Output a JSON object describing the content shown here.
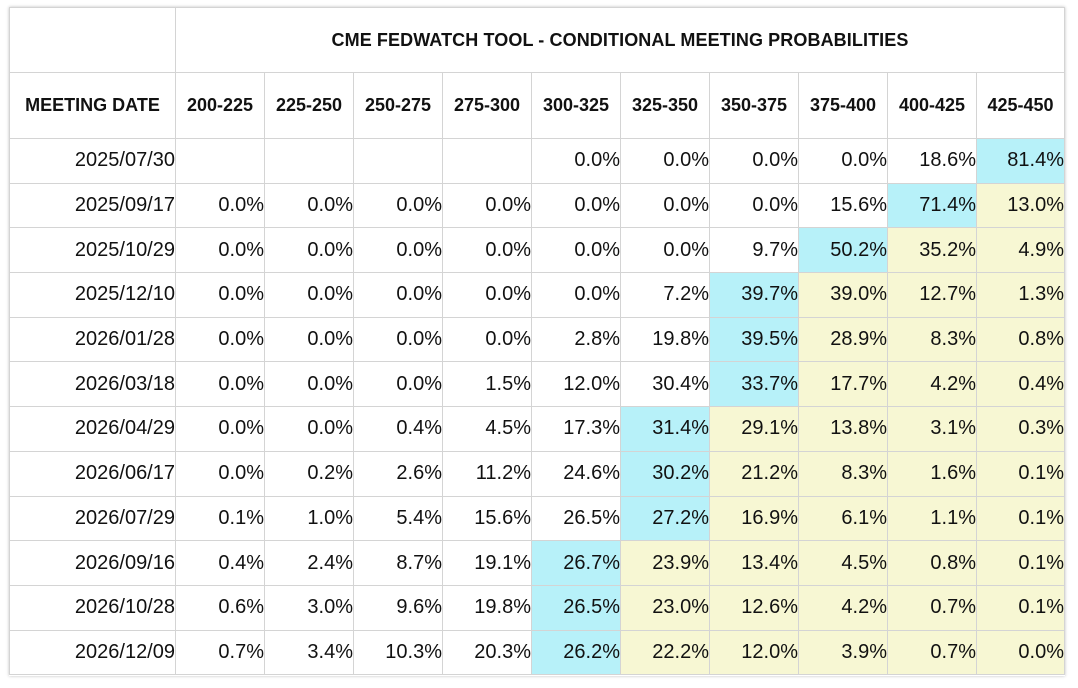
{
  "title": "CME FEDWATCH TOOL - CONDITIONAL MEETING PROBABILITIES",
  "date_header": "MEETING DATE",
  "ranges": [
    "200-225",
    "225-250",
    "250-275",
    "275-300",
    "300-325",
    "325-350",
    "350-375",
    "375-400",
    "400-425",
    "425-450"
  ],
  "colors": {
    "highest": "#b7f1f9",
    "above_highest_range": "#f7f7d3",
    "border": "#d4d4d4"
  },
  "rows": [
    {
      "date": "2025/07/30",
      "values": [
        "",
        "",
        "",
        "",
        "0.0%",
        "0.0%",
        "0.0%",
        "0.0%",
        "18.6%",
        "81.4%"
      ],
      "highlight": [
        0,
        0,
        0,
        0,
        0,
        0,
        0,
        0,
        0,
        1
      ]
    },
    {
      "date": "2025/09/17",
      "values": [
        "0.0%",
        "0.0%",
        "0.0%",
        "0.0%",
        "0.0%",
        "0.0%",
        "0.0%",
        "15.6%",
        "71.4%",
        "13.0%"
      ],
      "highlight": [
        0,
        0,
        0,
        0,
        0,
        0,
        0,
        0,
        1,
        2
      ]
    },
    {
      "date": "2025/10/29",
      "values": [
        "0.0%",
        "0.0%",
        "0.0%",
        "0.0%",
        "0.0%",
        "0.0%",
        "9.7%",
        "50.2%",
        "35.2%",
        "4.9%"
      ],
      "highlight": [
        0,
        0,
        0,
        0,
        0,
        0,
        0,
        1,
        2,
        2
      ]
    },
    {
      "date": "2025/12/10",
      "values": [
        "0.0%",
        "0.0%",
        "0.0%",
        "0.0%",
        "0.0%",
        "7.2%",
        "39.7%",
        "39.0%",
        "12.7%",
        "1.3%"
      ],
      "highlight": [
        0,
        0,
        0,
        0,
        0,
        0,
        1,
        2,
        2,
        2
      ]
    },
    {
      "date": "2026/01/28",
      "values": [
        "0.0%",
        "0.0%",
        "0.0%",
        "0.0%",
        "2.8%",
        "19.8%",
        "39.5%",
        "28.9%",
        "8.3%",
        "0.8%"
      ],
      "highlight": [
        0,
        0,
        0,
        0,
        0,
        0,
        1,
        2,
        2,
        2
      ]
    },
    {
      "date": "2026/03/18",
      "values": [
        "0.0%",
        "0.0%",
        "0.0%",
        "1.5%",
        "12.0%",
        "30.4%",
        "33.7%",
        "17.7%",
        "4.2%",
        "0.4%"
      ],
      "highlight": [
        0,
        0,
        0,
        0,
        0,
        0,
        1,
        2,
        2,
        2
      ]
    },
    {
      "date": "2026/04/29",
      "values": [
        "0.0%",
        "0.0%",
        "0.4%",
        "4.5%",
        "17.3%",
        "31.4%",
        "29.1%",
        "13.8%",
        "3.1%",
        "0.3%"
      ],
      "highlight": [
        0,
        0,
        0,
        0,
        0,
        1,
        2,
        2,
        2,
        2
      ]
    },
    {
      "date": "2026/06/17",
      "values": [
        "0.0%",
        "0.2%",
        "2.6%",
        "11.2%",
        "24.6%",
        "30.2%",
        "21.2%",
        "8.3%",
        "1.6%",
        "0.1%"
      ],
      "highlight": [
        0,
        0,
        0,
        0,
        0,
        1,
        2,
        2,
        2,
        2
      ]
    },
    {
      "date": "2026/07/29",
      "values": [
        "0.1%",
        "1.0%",
        "5.4%",
        "15.6%",
        "26.5%",
        "27.2%",
        "16.9%",
        "6.1%",
        "1.1%",
        "0.1%"
      ],
      "highlight": [
        0,
        0,
        0,
        0,
        0,
        1,
        2,
        2,
        2,
        2
      ]
    },
    {
      "date": "2026/09/16",
      "values": [
        "0.4%",
        "2.4%",
        "8.7%",
        "19.1%",
        "26.7%",
        "23.9%",
        "13.4%",
        "4.5%",
        "0.8%",
        "0.1%"
      ],
      "highlight": [
        0,
        0,
        0,
        0,
        1,
        2,
        2,
        2,
        2,
        2
      ]
    },
    {
      "date": "2026/10/28",
      "values": [
        "0.6%",
        "3.0%",
        "9.6%",
        "19.8%",
        "26.5%",
        "23.0%",
        "12.6%",
        "4.2%",
        "0.7%",
        "0.1%"
      ],
      "highlight": [
        0,
        0,
        0,
        0,
        1,
        2,
        2,
        2,
        2,
        2
      ]
    },
    {
      "date": "2026/12/09",
      "values": [
        "0.7%",
        "3.4%",
        "10.3%",
        "20.3%",
        "26.2%",
        "22.2%",
        "12.0%",
        "3.9%",
        "0.7%",
        "0.0%"
      ],
      "highlight": [
        0,
        0,
        0,
        0,
        1,
        2,
        2,
        2,
        2,
        2
      ]
    }
  ]
}
